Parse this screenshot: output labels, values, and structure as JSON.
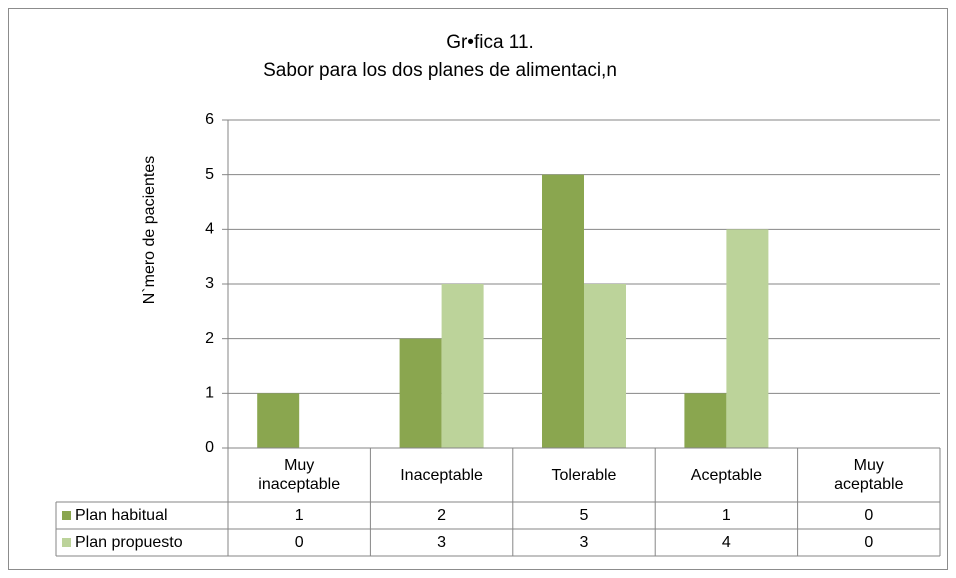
{
  "chart_data": {
    "type": "bar",
    "title": "Gr•fica 11.",
    "subtitle": "Sabor  para los dos planes de alimentaci,n",
    "y_label": "N`mero de pacientes",
    "categories": [
      "Muy inaceptable",
      "Inaceptable",
      "Tolerable",
      "Aceptable",
      "Muy aceptable"
    ],
    "series": [
      {
        "name": "Plan habitual",
        "color": "#8aa64f",
        "values": [
          1,
          2,
          5,
          1,
          0
        ]
      },
      {
        "name": "Plan propuesto",
        "color": "#bcd39a",
        "values": [
          0,
          3,
          3,
          4,
          0
        ]
      }
    ],
    "ylim": [
      0,
      6
    ],
    "yticks": [
      0,
      1,
      2,
      3,
      4,
      5,
      6
    ],
    "grid": true
  }
}
